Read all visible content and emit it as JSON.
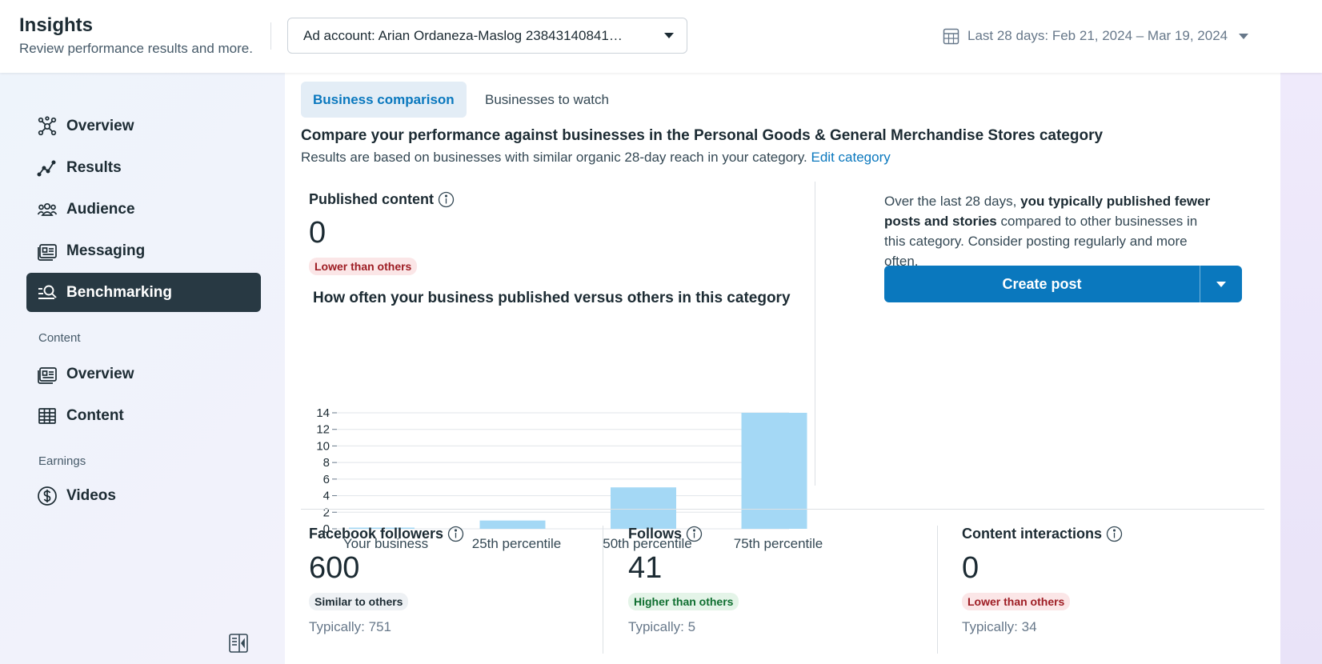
{
  "header": {
    "title": "Insights",
    "subtitle": "Review performance results and more.",
    "ad_account_label": "Ad account: Arian Ordaneza-Maslog 23843140841…",
    "date_range": "Last 28 days: Feb 21, 2024 – Mar 19, 2024"
  },
  "sidebar": {
    "items": [
      {
        "label": "Overview",
        "icon": "overview-network-icon"
      },
      {
        "label": "Results",
        "icon": "results-trend-icon"
      },
      {
        "label": "Audience",
        "icon": "audience-people-icon"
      },
      {
        "label": "Messaging",
        "icon": "messaging-card-icon"
      },
      {
        "label": "Benchmarking",
        "icon": "benchmarking-search-icon",
        "active": true
      }
    ],
    "content_section": "Content",
    "content_items": [
      {
        "label": "Overview",
        "icon": "content-overview-icon"
      },
      {
        "label": "Content",
        "icon": "table-icon"
      }
    ],
    "earnings_section": "Earnings",
    "earnings_items": [
      {
        "label": "Videos",
        "icon": "dollar-icon"
      }
    ]
  },
  "tabs": {
    "active": "Business comparison",
    "inactive": "Businesses to watch"
  },
  "comparison": {
    "title": "Compare your performance against businesses in the Personal Goods & General Merchandise Stores category",
    "subtitle": "Results are based on businesses with similar organic 28-day reach in your category.",
    "edit_link": "Edit category"
  },
  "published": {
    "label": "Published content",
    "value": "0",
    "badge": "Lower than others",
    "chart_title": "How often your business published versus others in this category"
  },
  "advice": {
    "pre": "Over the last 28 days,",
    "bold": "you typically published fewer posts and stories",
    "post": "compared to other businesses in this category. Consider posting regularly and more often."
  },
  "create_post": {
    "label": "Create post"
  },
  "metrics": [
    {
      "label": "Facebook followers",
      "value": "600",
      "badge": "Similar to others",
      "typically": "Typically: 751"
    },
    {
      "label": "Follows",
      "value": "41",
      "badge": "Higher than others",
      "typically": "Typically: 5"
    },
    {
      "label": "Content interactions",
      "value": "0",
      "badge": "Lower than others",
      "typically": "Typically: 34"
    }
  ],
  "colors": {
    "accent": "#0a78be",
    "bar": "#a4d8f5",
    "active_nav": "#283943"
  },
  "chart_data": {
    "type": "bar",
    "categories": [
      "Your business",
      "25th percentile",
      "50th percentile",
      "75th percentile"
    ],
    "values": [
      0,
      1,
      5,
      14
    ],
    "yticks": [
      0,
      2,
      4,
      6,
      8,
      10,
      12,
      14
    ],
    "ylim": [
      0,
      14
    ],
    "grid": true
  }
}
